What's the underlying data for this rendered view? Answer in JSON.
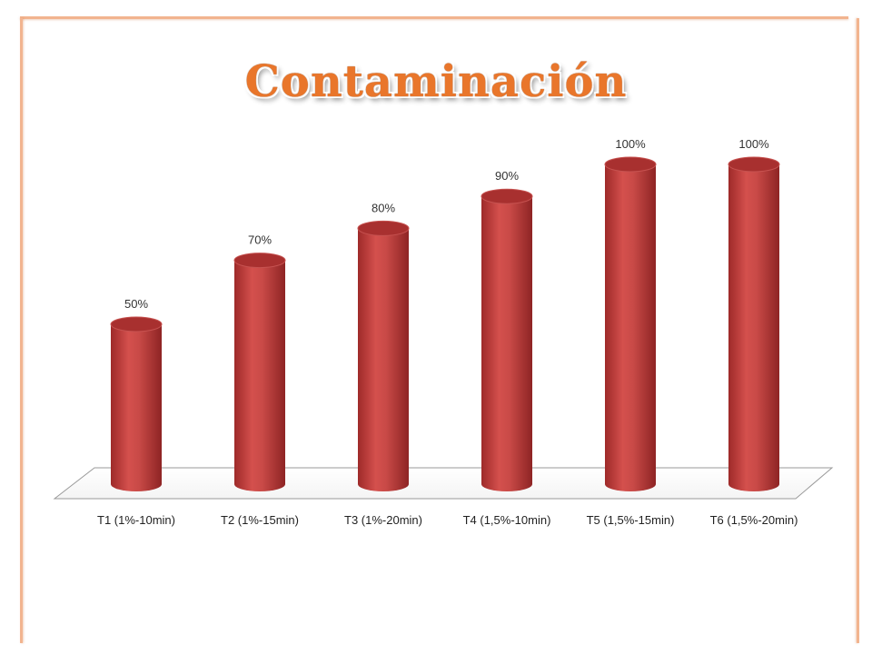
{
  "slide": {
    "title": "Contaminación"
  },
  "chart_data": {
    "type": "bar",
    "style": "3d-cylinder",
    "title": "Contaminación",
    "categories": [
      "T1 (1%-10min)",
      "T2 (1%-15min)",
      "T3 (1%-20min)",
      "T4 (1,5%-10min)",
      "T5 (1,5%-15min)",
      "T6 (1,5%-20min)"
    ],
    "values": [
      50,
      70,
      80,
      90,
      100,
      100
    ],
    "value_labels": [
      "50%",
      "70%",
      "80%",
      "90%",
      "100%",
      "100%"
    ],
    "ylim": [
      0,
      100
    ],
    "grid": false,
    "legend": "none",
    "colors": {
      "bar": "#c0403f",
      "bar_top": "#a8302f",
      "frame": "#f2b48f",
      "title": "#e9762b"
    }
  }
}
